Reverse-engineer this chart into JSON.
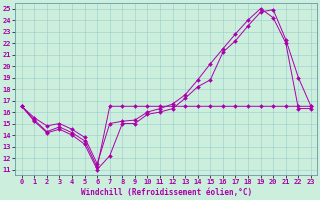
{
  "xlabel": "Windchill (Refroidissement éolien,°C)",
  "xlim": [
    -0.5,
    23.5
  ],
  "ylim": [
    10.5,
    25.5
  ],
  "xticks": [
    0,
    1,
    2,
    3,
    4,
    5,
    6,
    7,
    8,
    9,
    10,
    11,
    12,
    13,
    14,
    15,
    16,
    17,
    18,
    19,
    20,
    21,
    22,
    23
  ],
  "yticks": [
    11,
    12,
    13,
    14,
    15,
    16,
    17,
    18,
    19,
    20,
    21,
    22,
    23,
    24,
    25
  ],
  "bg_color": "#cceedd",
  "line_color": "#aa00aa",
  "line1_x": [
    0,
    1,
    2,
    3,
    4,
    5,
    6,
    7,
    8,
    9,
    10,
    11,
    12,
    13,
    14,
    15,
    16,
    17,
    18,
    19,
    20,
    21,
    22,
    23
  ],
  "line1_y": [
    16.5,
    15.2,
    14.2,
    14.5,
    14.0,
    13.2,
    11.0,
    12.2,
    15.0,
    15.0,
    15.8,
    16.0,
    16.3,
    17.2,
    18.2,
    18.8,
    21.2,
    22.2,
    23.5,
    24.7,
    24.9,
    22.3,
    19.0,
    16.5
  ],
  "line2_x": [
    0,
    1,
    2,
    3,
    4,
    5,
    6,
    7,
    8,
    9,
    10,
    11,
    12,
    13,
    14,
    15,
    16,
    17,
    18,
    19,
    20,
    21,
    22,
    23
  ],
  "line2_y": [
    16.5,
    15.5,
    14.8,
    15.0,
    14.5,
    13.8,
    11.5,
    15.0,
    15.2,
    15.3,
    16.0,
    16.3,
    16.7,
    17.5,
    18.8,
    20.2,
    21.5,
    22.8,
    24.0,
    25.0,
    24.2,
    22.0,
    16.3,
    16.3
  ],
  "line3_x": [
    0,
    1,
    2,
    3,
    4,
    5,
    6,
    7,
    8,
    9,
    10,
    11,
    12,
    13,
    14,
    15,
    16,
    17,
    18,
    19,
    20,
    21,
    22,
    23
  ],
  "line3_y": [
    16.5,
    15.3,
    14.3,
    14.7,
    14.2,
    13.5,
    11.2,
    16.5,
    16.5,
    16.5,
    16.5,
    16.5,
    16.5,
    16.5,
    16.5,
    16.5,
    16.5,
    16.5,
    16.5,
    16.5,
    16.5,
    16.5,
    16.5,
    16.5
  ],
  "marker": "D",
  "markersize": 2,
  "linewidth": 0.7,
  "tick_fontsize": 5,
  "xlabel_fontsize": 5.5
}
